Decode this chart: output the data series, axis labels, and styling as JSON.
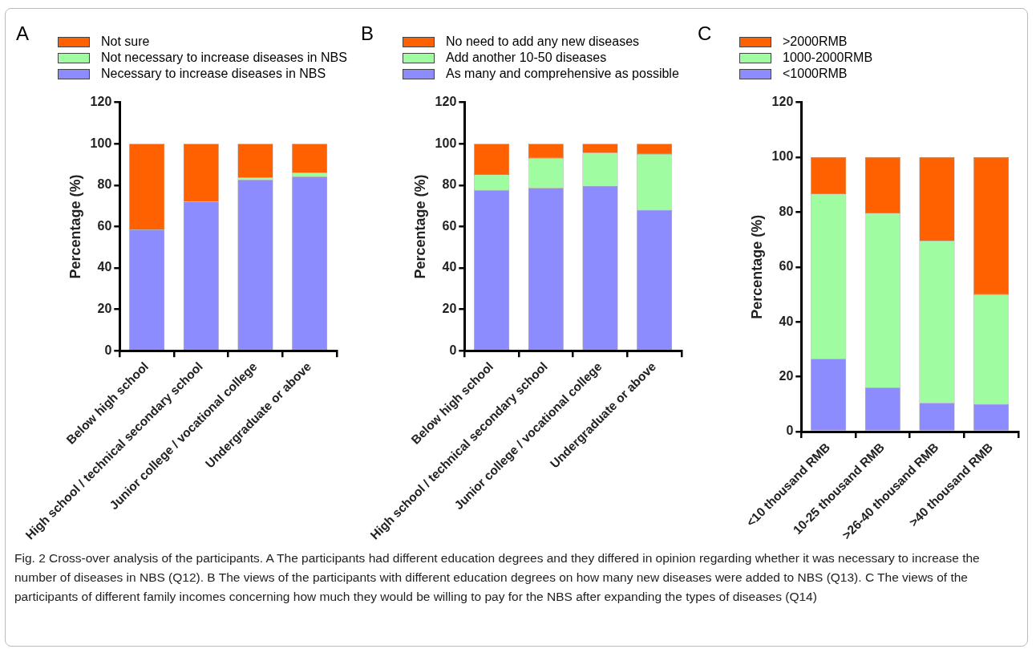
{
  "chart_data": [
    {
      "type": "bar",
      "title": "A",
      "stacked": true,
      "ylabel": "Percentage (%)",
      "ylim": [
        0,
        120
      ],
      "yticks": [
        0,
        20,
        40,
        60,
        80,
        100,
        120
      ],
      "grid": false,
      "legend": "top",
      "categories": [
        "Below high school",
        "High school / technical secondary school",
        "Junior college / vocational college",
        "Undergraduate or above"
      ],
      "series": [
        {
          "name": "Necessary to increase diseases in NBS",
          "color": "#8c8cff",
          "values": [
            58.5,
            72,
            82.5,
            84
          ]
        },
        {
          "name": "Not necessary to increase diseases in NBS",
          "color": "#a0fca0",
          "values": [
            0,
            0,
            1,
            2
          ]
        },
        {
          "name": "Not sure",
          "color": "#ff6000",
          "values": [
            41.5,
            28,
            16.5,
            14
          ]
        }
      ]
    },
    {
      "type": "bar",
      "title": "B",
      "stacked": true,
      "ylabel": "Percentage (%)",
      "ylim": [
        0,
        120
      ],
      "yticks": [
        0,
        20,
        40,
        60,
        80,
        100,
        120
      ],
      "grid": false,
      "legend": "top",
      "categories": [
        "Below high school",
        "High school / technical secondary school",
        "Junior college / vocational college",
        "Undergraduate or above"
      ],
      "series": [
        {
          "name": "As many and comprehensive as possible",
          "color": "#8c8cff",
          "values": [
            77.5,
            78.5,
            79.5,
            68
          ]
        },
        {
          "name": "Add another 10-50 diseases",
          "color": "#a0fca0",
          "values": [
            7.5,
            14.5,
            16,
            27
          ]
        },
        {
          "name": "No need to add any new diseases",
          "color": "#ff6000",
          "values": [
            15,
            7,
            4.5,
            5
          ]
        }
      ]
    },
    {
      "type": "bar",
      "title": "C",
      "stacked": true,
      "ylabel": "Percentage (%)",
      "ylim": [
        0,
        120
      ],
      "yticks": [
        0,
        20,
        40,
        60,
        80,
        100,
        120
      ],
      "grid": false,
      "legend": "top",
      "categories": [
        "<10 thousand RMB",
        "10-25 thousand RMB",
        ">26-40 thousand RMB",
        ">40 thousand RMB"
      ],
      "series": [
        {
          "name": "<1000RMB",
          "color": "#8c8cff",
          "values": [
            26.5,
            16,
            10.5,
            10
          ]
        },
        {
          "name": "1000-2000RMB",
          "color": "#a0fca0",
          "values": [
            60,
            63.5,
            59,
            40
          ]
        },
        {
          "name": ">2000RMB",
          "color": "#ff6000",
          "values": [
            13.5,
            20.5,
            30.5,
            50
          ]
        }
      ],
      "annotations": [
        "Fig. 2 Cross-over analysis of the participants. A The participants had different education degrees and they differed in opinion regarding whether it was necessary to increase the number of diseases in NBS (Q12). B The views of the participants with different education degrees on how many new diseases were added to NBS (Q13). C The views of the participants of different family incomes concerning how much they would be willing to pay for the NBS after expanding the types of diseases (Q14)"
      ]
    }
  ]
}
